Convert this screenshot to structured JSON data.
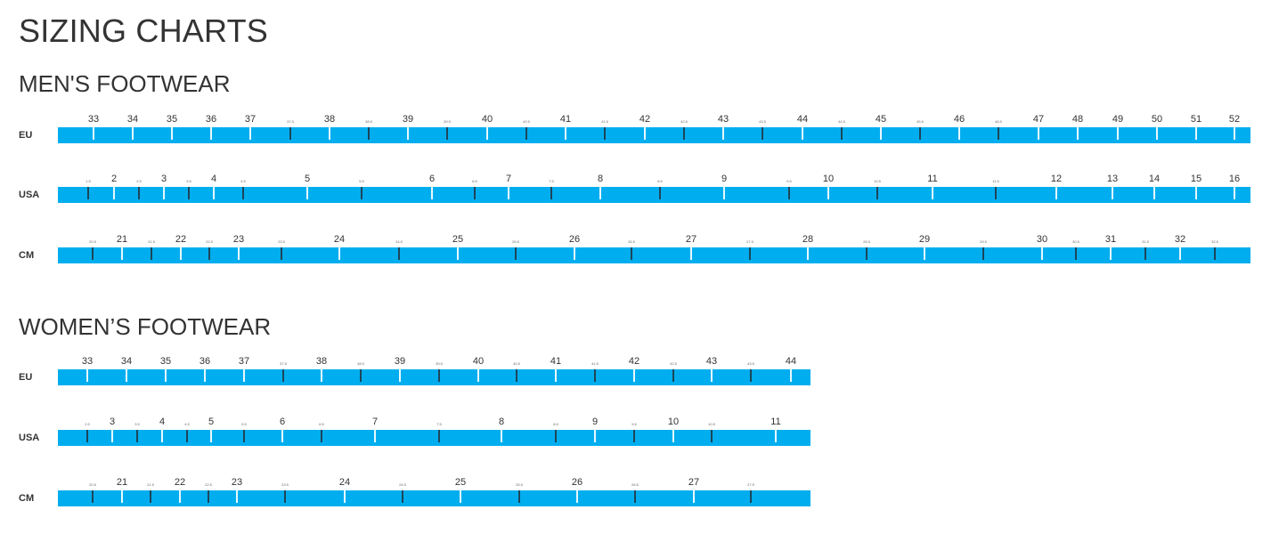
{
  "title": "SIZING CHARTS",
  "colors": {
    "bar": "#00aeef",
    "whole_tick": "#e8f8ff",
    "half_tick": "#1d4559"
  },
  "sections": [
    {
      "heading": "MEN'S FOOTWEAR",
      "rows": [
        {
          "label": "EU",
          "ticks": [
            "33",
            "34",
            "35",
            "36",
            "37",
            "37.5",
            "38",
            "38.5",
            "39",
            "39.5",
            "40",
            "40.5",
            "41",
            "41.5",
            "42",
            "42.5",
            "43",
            "43.5",
            "44",
            "44.5",
            "45",
            "45.5",
            "46",
            "46.5",
            "47",
            "48",
            "49",
            "50",
            "51",
            "52"
          ]
        },
        {
          "label": "USA",
          "ticks": [
            "1.5",
            "2",
            "2.5",
            "3",
            "3.5",
            "4",
            "4.5",
            "5",
            "5.5",
            "6",
            "6.5",
            "7",
            "7.5",
            "8",
            "8.5",
            "9",
            "9.5",
            "10",
            "10.5",
            "11",
            "11.5",
            "12",
            "13",
            "14",
            "15",
            "16"
          ]
        },
        {
          "label": "CM",
          "ticks": [
            "20.5",
            "21",
            "21.5",
            "22",
            "22.5",
            "23",
            "23.5",
            "24",
            "24.5",
            "25",
            "25.5",
            "26",
            "26.5",
            "27",
            "27.5",
            "28",
            "28.5",
            "29",
            "29.5",
            "30",
            "30.5",
            "31",
            "31.5",
            "32",
            "32.5"
          ]
        }
      ]
    },
    {
      "heading": "WOMEN’S FOOTWEAR",
      "rows": [
        {
          "label": "EU",
          "ticks": [
            "33",
            "34",
            "35",
            "36",
            "37",
            "37.5",
            "38",
            "38.5",
            "39",
            "39.5",
            "40",
            "40.5",
            "41",
            "41.5",
            "42",
            "42.5",
            "43",
            "43.5",
            "44"
          ]
        },
        {
          "label": "USA",
          "ticks": [
            "2.5",
            "3",
            "3.5",
            "4",
            "4.5",
            "5",
            "5.5",
            "6",
            "6.5",
            "7",
            "7.5",
            "8",
            "8.5",
            "9",
            "9.5",
            "10",
            "10.5",
            "11"
          ]
        },
        {
          "label": "CM",
          "ticks": [
            "20.5",
            "21",
            "21.5",
            "22",
            "22.5",
            "23",
            "23.5",
            "24",
            "24.5",
            "25",
            "25.5",
            "26",
            "26.5",
            "27",
            "27.5"
          ]
        }
      ]
    }
  ]
}
